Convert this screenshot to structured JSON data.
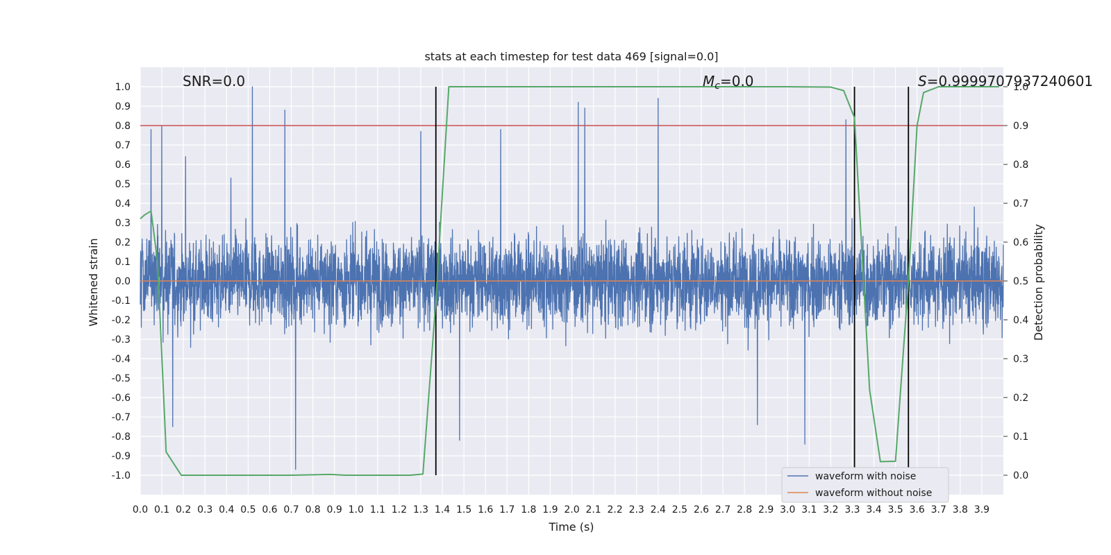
{
  "chart_data": {
    "type": "line",
    "title": "stats at each timestep for test data 469 [signal=0.0]",
    "xlabel": "Time (s)",
    "ylabel": "Whitened strain",
    "y2label": "Detection probability",
    "xlim": [
      0.0,
      4.0
    ],
    "ylim": [
      -1.1,
      1.1
    ],
    "y2lim": [
      -0.05,
      1.05
    ],
    "x_ticks": [
      "0.0",
      "0.1",
      "0.2",
      "0.3",
      "0.4",
      "0.5",
      "0.6",
      "0.7",
      "0.8",
      "0.9",
      "1.0",
      "1.1",
      "1.2",
      "1.3",
      "1.4",
      "1.5",
      "1.6",
      "1.7",
      "1.8",
      "1.9",
      "2.0",
      "2.1",
      "2.2",
      "2.3",
      "2.4",
      "2.5",
      "2.6",
      "2.7",
      "2.8",
      "2.9",
      "3.0",
      "3.1",
      "3.2",
      "3.3",
      "3.4",
      "3.5",
      "3.6",
      "3.7",
      "3.8",
      "3.9"
    ],
    "y_ticks": [
      "1.0",
      "0.9",
      "0.8",
      "0.7",
      "0.6",
      "0.5",
      "0.4",
      "0.3",
      "0.2",
      "0.1",
      "0.0",
      "-0.1",
      "-0.2",
      "-0.3",
      "-0.4",
      "-0.5",
      "-0.6",
      "-0.7",
      "-0.8",
      "-0.9",
      "-1.0"
    ],
    "y2_ticks": [
      "1.0",
      "0.9",
      "0.8",
      "0.7",
      "0.6",
      "0.5",
      "0.4",
      "0.3",
      "0.2",
      "0.1",
      "0.0"
    ],
    "annotations": {
      "snr": "SNR=0.0",
      "mc_symbol": "M",
      "mc_sub": "c",
      "mc_value": "=0.0",
      "s_symbol": "S",
      "s_value": "=0.9999707937240601"
    },
    "threshold": {
      "y2": 0.9,
      "color": "#c44e52"
    },
    "vertical_lines": [
      1.37,
      3.31,
      3.56
    ],
    "series": [
      {
        "name": "waveform with noise",
        "color": "#4c72b0",
        "kind": "noise",
        "amplitude_envelope": 0.45,
        "peak_spikes": [
          {
            "x": 0.05,
            "y": 0.78
          },
          {
            "x": 0.1,
            "y": 0.8
          },
          {
            "x": 0.21,
            "y": 0.64
          },
          {
            "x": 0.42,
            "y": 0.53
          },
          {
            "x": 0.52,
            "y": 1.0
          },
          {
            "x": 0.67,
            "y": 0.88
          },
          {
            "x": 1.3,
            "y": 0.77
          },
          {
            "x": 1.67,
            "y": 0.78
          },
          {
            "x": 2.03,
            "y": 0.92
          },
          {
            "x": 2.06,
            "y": 0.89
          },
          {
            "x": 2.4,
            "y": 0.94
          },
          {
            "x": 3.27,
            "y": 0.83
          },
          {
            "x": 0.72,
            "y": -0.97
          },
          {
            "x": 0.15,
            "y": -0.75
          },
          {
            "x": 1.48,
            "y": -0.82
          },
          {
            "x": 3.08,
            "y": -0.84
          },
          {
            "x": 2.86,
            "y": -0.74
          }
        ]
      },
      {
        "name": "waveform without noise",
        "color": "#dd8452",
        "x": [
          0.0,
          4.0
        ],
        "y": [
          0.0,
          0.0
        ]
      },
      {
        "name": "detection probability",
        "color": "#55a868",
        "axis": "y2",
        "x": [
          0.0,
          0.02,
          0.05,
          0.08,
          0.12,
          0.19,
          0.3,
          0.7,
          0.88,
          0.95,
          1.25,
          1.31,
          1.37,
          1.43,
          1.5,
          2.0,
          3.0,
          3.2,
          3.26,
          3.31,
          3.38,
          3.43,
          3.5,
          3.56,
          3.6,
          3.63,
          3.7,
          3.98
        ],
        "y": [
          0.66,
          0.67,
          0.68,
          0.55,
          0.06,
          0.0,
          0.0,
          0.0,
          0.002,
          0.0,
          0.0,
          0.003,
          0.45,
          1.0,
          1.0,
          1.0,
          1.0,
          0.999,
          0.99,
          0.92,
          0.22,
          0.035,
          0.036,
          0.5,
          0.9,
          0.985,
          1.0,
          1.0
        ]
      }
    ],
    "legend": {
      "placement": "lower-right",
      "entries": [
        "waveform with noise",
        "waveform without noise"
      ]
    },
    "grid": true,
    "colors": {
      "plot_bg": "#eaeaf2",
      "grid": "#ffffff",
      "vline": "#000000"
    }
  }
}
